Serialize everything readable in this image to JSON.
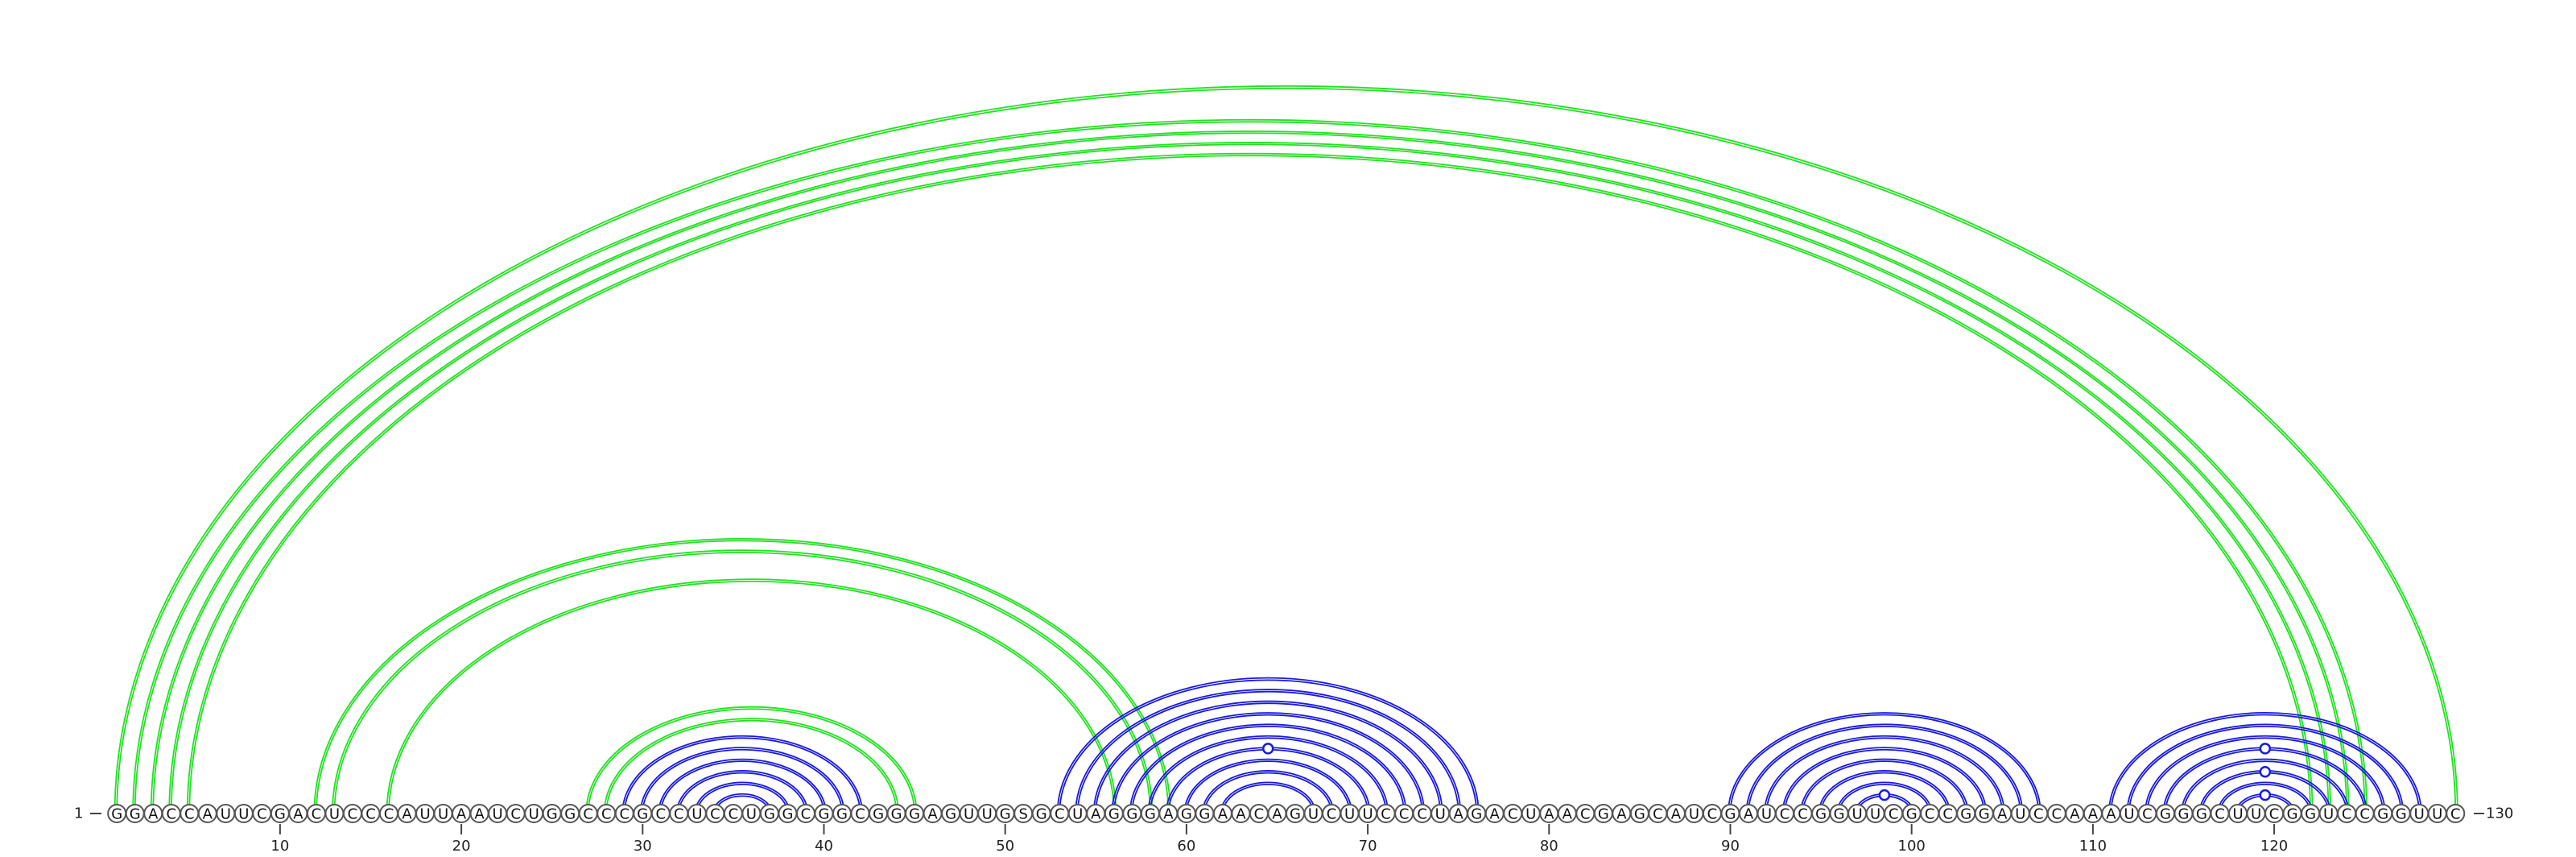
{
  "diagram": {
    "sequence": "GGACCAUUCGACUCCCAUUAAUCUGGCCCGCCUCCUGGCGGCGGGAGUUGSGCUAGGGAGGAACAGUCUUCCCUAGACUAACGAGCAUCGAUCCGGUUCGCCGGAUCCAAAUCGGGCUUCGGUCCGGUUC",
    "start_label": "1",
    "end_label": "130",
    "ticks": [
      10,
      20,
      30,
      40,
      50,
      60,
      70,
      80,
      90,
      100,
      110,
      120
    ],
    "colors": {
      "pair_a": "#22e222",
      "pair_b": "#1a1ae0",
      "outline": "#555555"
    },
    "arc_groups": [
      {
        "color_key": "pair_a",
        "pairs": [
          [
            1,
            130
          ],
          [
            2,
            125
          ],
          [
            3,
            124
          ],
          [
            4,
            123
          ],
          [
            5,
            122
          ]
        ]
      },
      {
        "color_key": "pair_a",
        "pairs": [
          [
            12,
            59
          ],
          [
            13,
            58
          ]
        ]
      },
      {
        "color_key": "pair_a",
        "pairs": [
          [
            16,
            56
          ]
        ]
      },
      {
        "color_key": "pair_a",
        "pairs": [
          [
            27,
            45
          ],
          [
            28,
            44
          ]
        ]
      },
      {
        "color_key": "pair_b",
        "pairs": [
          [
            29,
            42
          ],
          [
            30,
            41
          ],
          [
            31,
            40
          ],
          [
            32,
            39
          ],
          [
            33,
            38
          ],
          [
            34,
            37
          ]
        ]
      },
      {
        "color_key": "pair_b",
        "pairs": [
          [
            53,
            76
          ],
          [
            54,
            75
          ],
          [
            55,
            74
          ],
          [
            56,
            73
          ],
          [
            57,
            72
          ],
          [
            58,
            71
          ],
          [
            59,
            70
          ],
          [
            60,
            69
          ],
          [
            61,
            68
          ],
          [
            62,
            67
          ]
        ]
      },
      {
        "color_key": "pair_b",
        "pairs": [
          [
            90,
            107
          ],
          [
            91,
            106
          ],
          [
            92,
            105
          ],
          [
            93,
            104
          ],
          [
            94,
            103
          ],
          [
            95,
            102
          ],
          [
            96,
            101
          ],
          [
            97,
            100
          ]
        ]
      },
      {
        "color_key": "pair_b",
        "pairs": [
          [
            111,
            128
          ],
          [
            112,
            127
          ],
          [
            113,
            126
          ],
          [
            114,
            125
          ],
          [
            115,
            124
          ],
          [
            116,
            123
          ],
          [
            117,
            122
          ],
          [
            118,
            121
          ]
        ]
      }
    ],
    "wobble_markers": [
      {
        "color_key": "pair_b",
        "pair": [
          59,
          70
        ]
      },
      {
        "color_key": "pair_b",
        "pair": [
          97,
          100
        ]
      },
      {
        "color_key": "pair_b",
        "pair": [
          114,
          125
        ]
      },
      {
        "color_key": "pair_b",
        "pair": [
          116,
          123
        ]
      },
      {
        "color_key": "pair_b",
        "pair": [
          118,
          121
        ]
      }
    ]
  }
}
